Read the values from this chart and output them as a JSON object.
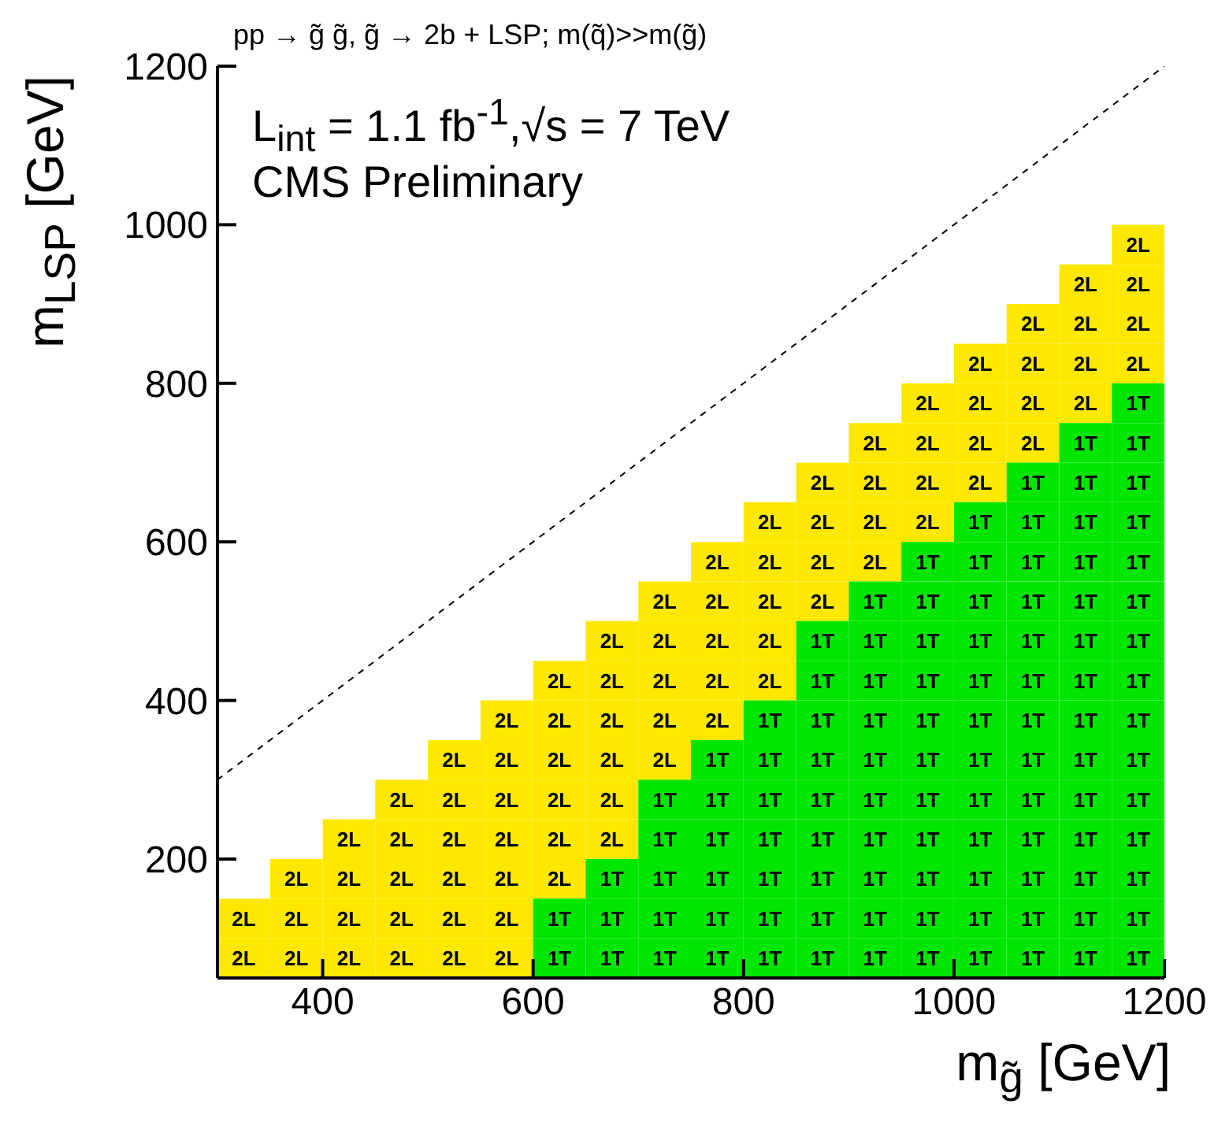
{
  "chart_data": {
    "type": "heatmap",
    "title": "pp → g̃ g̃, g̃ → 2b + LSP; m(q̃)>>m(g̃)",
    "xlabel": "m$_{g̃}$ [GeV]",
    "ylabel": "m$_{LSP}$ [GeV]",
    "annotations": [
      "L$_{int}$ = 1.1 fb$^{-1}$,√s = 7 TeV",
      "CMS Preliminary"
    ],
    "x": [
      325,
      375,
      425,
      475,
      525,
      575,
      625,
      675,
      725,
      775,
      825,
      875,
      925,
      975,
      1025,
      1075,
      1125,
      1175
    ],
    "y": [
      975,
      925,
      875,
      825,
      775,
      725,
      675,
      625,
      575,
      525,
      475,
      425,
      375,
      325,
      275,
      225,
      175,
      125,
      75
    ],
    "xlim": [
      300,
      1200
    ],
    "xticks": [
      400,
      600,
      800,
      1000,
      1200
    ],
    "ylim": [
      50,
      1200
    ],
    "yticks": [
      200,
      400,
      600,
      800,
      1000,
      1200
    ],
    "cells": [
      [
        null,
        null,
        null,
        null,
        null,
        null,
        null,
        null,
        null,
        null,
        null,
        null,
        null,
        null,
        null,
        null,
        null,
        "2L"
      ],
      [
        null,
        null,
        null,
        null,
        null,
        null,
        null,
        null,
        null,
        null,
        null,
        null,
        null,
        null,
        null,
        null,
        "2L",
        "2L"
      ],
      [
        null,
        null,
        null,
        null,
        null,
        null,
        null,
        null,
        null,
        null,
        null,
        null,
        null,
        null,
        null,
        "2L",
        "2L",
        "2L"
      ],
      [
        null,
        null,
        null,
        null,
        null,
        null,
        null,
        null,
        null,
        null,
        null,
        null,
        null,
        null,
        "2L",
        "2L",
        "2L",
        "2L"
      ],
      [
        null,
        null,
        null,
        null,
        null,
        null,
        null,
        null,
        null,
        null,
        null,
        null,
        null,
        "2L",
        "2L",
        "2L",
        "2L",
        "1T"
      ],
      [
        null,
        null,
        null,
        null,
        null,
        null,
        null,
        null,
        null,
        null,
        null,
        null,
        "2L",
        "2L",
        "2L",
        "2L",
        "1T",
        "1T"
      ],
      [
        null,
        null,
        null,
        null,
        null,
        null,
        null,
        null,
        null,
        null,
        null,
        "2L",
        "2L",
        "2L",
        "2L",
        "1T",
        "1T",
        "1T"
      ],
      [
        null,
        null,
        null,
        null,
        null,
        null,
        null,
        null,
        null,
        null,
        "2L",
        "2L",
        "2L",
        "2L",
        "1T",
        "1T",
        "1T",
        "1T"
      ],
      [
        null,
        null,
        null,
        null,
        null,
        null,
        null,
        null,
        null,
        "2L",
        "2L",
        "2L",
        "2L",
        "1T",
        "1T",
        "1T",
        "1T",
        "1T"
      ],
      [
        null,
        null,
        null,
        null,
        null,
        null,
        null,
        null,
        "2L",
        "2L",
        "2L",
        "2L",
        "1T",
        "1T",
        "1T",
        "1T",
        "1T",
        "1T"
      ],
      [
        null,
        null,
        null,
        null,
        null,
        null,
        null,
        "2L",
        "2L",
        "2L",
        "2L",
        "1T",
        "1T",
        "1T",
        "1T",
        "1T",
        "1T",
        "1T"
      ],
      [
        null,
        null,
        null,
        null,
        null,
        null,
        "2L",
        "2L",
        "2L",
        "2L",
        "2L",
        "1T",
        "1T",
        "1T",
        "1T",
        "1T",
        "1T",
        "1T"
      ],
      [
        null,
        null,
        null,
        null,
        null,
        "2L",
        "2L",
        "2L",
        "2L",
        "2L",
        "1T",
        "1T",
        "1T",
        "1T",
        "1T",
        "1T",
        "1T",
        "1T"
      ],
      [
        null,
        null,
        null,
        null,
        "2L",
        "2L",
        "2L",
        "2L",
        "2L",
        "1T",
        "1T",
        "1T",
        "1T",
        "1T",
        "1T",
        "1T",
        "1T",
        "1T"
      ],
      [
        null,
        null,
        null,
        "2L",
        "2L",
        "2L",
        "2L",
        "2L",
        "1T",
        "1T",
        "1T",
        "1T",
        "1T",
        "1T",
        "1T",
        "1T",
        "1T",
        "1T"
      ],
      [
        null,
        null,
        "2L",
        "2L",
        "2L",
        "2L",
        "2L",
        "2L",
        "1T",
        "1T",
        "1T",
        "1T",
        "1T",
        "1T",
        "1T",
        "1T",
        "1T",
        "1T"
      ],
      [
        null,
        "2L",
        "2L",
        "2L",
        "2L",
        "2L",
        "2L",
        "1T",
        "1T",
        "1T",
        "1T",
        "1T",
        "1T",
        "1T",
        "1T",
        "1T",
        "1T",
        "1T"
      ],
      [
        "2L",
        "2L",
        "2L",
        "2L",
        "2L",
        "2L",
        "1T",
        "1T",
        "1T",
        "1T",
        "1T",
        "1T",
        "1T",
        "1T",
        "1T",
        "1T",
        "1T",
        "1T"
      ],
      [
        "2L",
        "2L",
        "2L",
        "2L",
        "2L",
        "2L",
        "1T",
        "1T",
        "1T",
        "1T",
        "1T",
        "1T",
        "1T",
        "1T",
        "1T",
        "1T",
        "1T",
        "1T"
      ]
    ],
    "colors": [
      [
        null,
        null,
        null,
        null,
        null,
        null,
        null,
        null,
        null,
        null,
        null,
        null,
        null,
        null,
        null,
        null,
        null,
        "#ffe800"
      ],
      [
        null,
        null,
        null,
        null,
        null,
        null,
        null,
        null,
        null,
        null,
        null,
        null,
        null,
        null,
        null,
        null,
        "#ffe800",
        "#ffe800"
      ],
      [
        null,
        null,
        null,
        null,
        null,
        null,
        null,
        null,
        null,
        null,
        null,
        null,
        null,
        null,
        null,
        "#ffe800",
        "#ffe800",
        "#ffe800"
      ],
      [
        null,
        null,
        null,
        null,
        null,
        null,
        null,
        null,
        null,
        null,
        null,
        null,
        null,
        null,
        "#ffe800",
        "#ffe800",
        "#ffe800",
        "#ffe800"
      ],
      [
        null,
        null,
        null,
        null,
        null,
        null,
        null,
        null,
        null,
        null,
        null,
        null,
        null,
        "#ffe800",
        "#ffe800",
        "#ffe800",
        "#ffe800",
        "#00e600"
      ],
      [
        null,
        null,
        null,
        null,
        null,
        null,
        null,
        null,
        null,
        null,
        null,
        null,
        "#ffe800",
        "#ffe800",
        "#ffe800",
        "#ffe800",
        "#00e600",
        "#00e600"
      ],
      [
        null,
        null,
        null,
        null,
        null,
        null,
        null,
        null,
        null,
        null,
        null,
        "#ffe800",
        "#ffe800",
        "#ffe800",
        "#ffe800",
        "#00e600",
        "#00e600",
        "#00e600"
      ],
      [
        null,
        null,
        null,
        null,
        null,
        null,
        null,
        null,
        null,
        null,
        "#ffe800",
        "#ffe800",
        "#ffe800",
        "#ffe800",
        "#00e600",
        "#00e600",
        "#00e600",
        "#00e600"
      ],
      [
        null,
        null,
        null,
        null,
        null,
        null,
        null,
        null,
        null,
        "#ffe800",
        "#ffe800",
        "#ffe800",
        "#ffe800",
        "#00e600",
        "#00e600",
        "#00e600",
        "#00e600",
        "#00e600"
      ],
      [
        null,
        null,
        null,
        null,
        null,
        null,
        null,
        null,
        "#ffe800",
        "#ffe800",
        "#ffe800",
        "#ffe800",
        "#00e600",
        "#00e600",
        "#00e600",
        "#00e600",
        "#00e600",
        "#00e600"
      ],
      [
        null,
        null,
        null,
        null,
        null,
        null,
        null,
        "#ffe800",
        "#ffe800",
        "#ffe800",
        "#ffe800",
        "#00e600",
        "#00e600",
        "#00e600",
        "#00e600",
        "#00e600",
        "#00e600",
        "#00e600"
      ],
      [
        null,
        null,
        null,
        null,
        null,
        null,
        "#ffe800",
        "#ffe800",
        "#ffe800",
        "#ffe800",
        "#ffe800",
        "#00e600",
        "#00e600",
        "#00e600",
        "#00e600",
        "#00e600",
        "#00e600",
        "#00e600"
      ],
      [
        null,
        null,
        null,
        null,
        null,
        "#ffe800",
        "#ffe800",
        "#ffe800",
        "#ffe800",
        "#ffe800",
        "#00e600",
        "#00e600",
        "#00e600",
        "#00e600",
        "#00e600",
        "#00e600",
        "#00e600",
        "#00e600"
      ],
      [
        null,
        null,
        null,
        null,
        "#ffe800",
        "#ffe800",
        "#ffe800",
        "#ffe800",
        "#ffe800",
        "#00e600",
        "#00e600",
        "#00e600",
        "#00e600",
        "#00e600",
        "#00e600",
        "#00e600",
        "#00e600",
        "#00e600"
      ],
      [
        null,
        null,
        null,
        "#ffe800",
        "#ffe800",
        "#ffe800",
        "#ffe800",
        "#ffe800",
        "#00e600",
        "#00e600",
        "#00e600",
        "#00e600",
        "#00e600",
        "#00e600",
        "#00e600",
        "#00e600",
        "#00e600",
        "#00e600"
      ],
      [
        null,
        null,
        "#ffe800",
        "#ffe800",
        "#ffe800",
        "#ffe800",
        "#ffe800",
        "#ffe800",
        "#00e600",
        "#00e600",
        "#00e600",
        "#00e600",
        "#00e600",
        "#00e600",
        "#00e600",
        "#00e600",
        "#00e600",
        "#00e600"
      ],
      [
        null,
        "#ffe800",
        "#ffe800",
        "#ffe800",
        "#ffe800",
        "#ffe800",
        "#ffe800",
        "#00e600",
        "#00e600",
        "#00e600",
        "#00e600",
        "#00e600",
        "#00e600",
        "#00e600",
        "#00e600",
        "#00e600",
        "#00e600",
        "#00e600"
      ],
      [
        "#ffe800",
        "#ffe800",
        "#ffe800",
        "#ffe800",
        "#ffe800",
        "#ffe800",
        "#00e600",
        "#00e600",
        "#00e600",
        "#00e600",
        "#00e600",
        "#00e600",
        "#00e600",
        "#00e600",
        "#00e600",
        "#00e600",
        "#00e600",
        "#00e600"
      ],
      [
        "#ffe800",
        "#ffe800",
        "#ffe800",
        "#ffe800",
        "#ffe800",
        "#ffe800",
        "#00e600",
        "#00e600",
        "#00e600",
        "#00e600",
        "#00e600",
        "#00e600",
        "#00e600",
        "#00e600",
        "#00e600",
        "#00e600",
        "#00e600",
        "#00e600"
      ]
    ],
    "series": [
      {
        "type": "line",
        "x": [
          300,
          1200
        ],
        "values": [
          300,
          1200
        ],
        "color": "#000000",
        "line_style": "dashed",
        "marker": "none"
      }
    ]
  }
}
